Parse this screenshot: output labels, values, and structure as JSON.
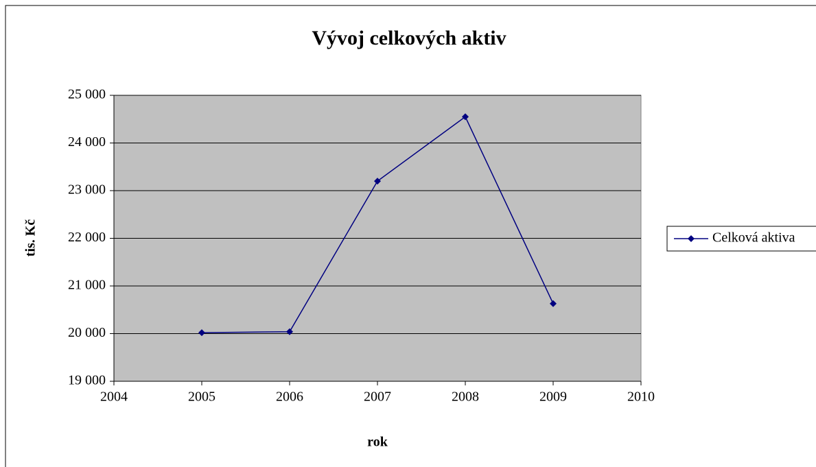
{
  "chart_data": {
    "type": "line",
    "title": "Vývoj celkových aktiv",
    "x_label": "rok",
    "y_label": "tis. Kč",
    "x": [
      2005,
      2006,
      2007,
      2008,
      2009
    ],
    "series": [
      {
        "name": "Celková aktiva",
        "color": "#000080",
        "values": [
          20020,
          20040,
          23200,
          24550,
          20630
        ]
      }
    ],
    "xlim": [
      2004,
      2010
    ],
    "xticks": [
      2004,
      2005,
      2006,
      2007,
      2008,
      2009,
      2010
    ],
    "ylim": [
      19000,
      25000
    ],
    "yticks": [
      {
        "value": 19000,
        "label": "19 000"
      },
      {
        "value": 20000,
        "label": "20 000"
      },
      {
        "value": 21000,
        "label": "21 000"
      },
      {
        "value": 22000,
        "label": "22 000"
      },
      {
        "value": 23000,
        "label": "23 000"
      },
      {
        "value": 24000,
        "label": "24 000"
      },
      {
        "value": 25000,
        "label": "25 000"
      }
    ],
    "grid": true,
    "legend": "right",
    "plot_background": "#c0c0c0"
  }
}
